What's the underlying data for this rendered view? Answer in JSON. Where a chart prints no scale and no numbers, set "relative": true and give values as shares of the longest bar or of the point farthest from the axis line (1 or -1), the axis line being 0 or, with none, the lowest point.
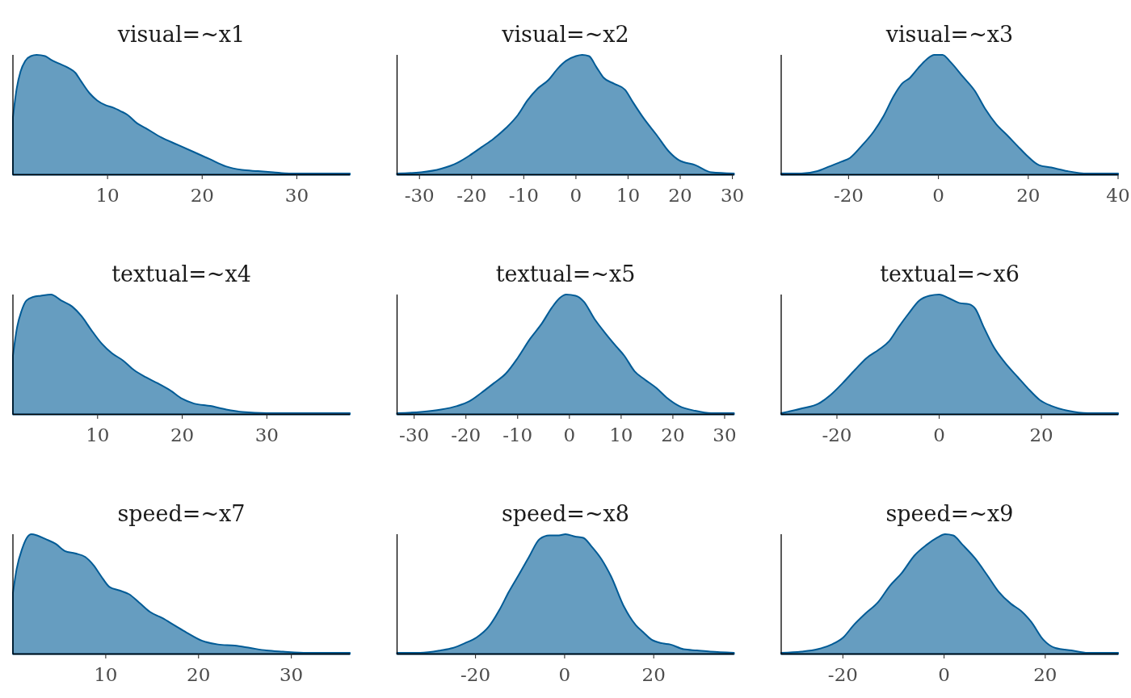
{
  "chart_data": [
    {
      "type": "area",
      "title": "visual=~x1",
      "relative": true,
      "color": "#005b96",
      "xlim": [
        0,
        35.6
      ],
      "xticks": [
        10,
        20,
        30
      ],
      "x": [
        0,
        0.4,
        0.8,
        1.3,
        1.9,
        2.5,
        3.4,
        4,
        4.8,
        5.9,
        6.6,
        7.2,
        8.1,
        8.9,
        9.8,
        10.6,
        11.4,
        12.1,
        13.1,
        14,
        15.7,
        17.4,
        19.1,
        20.8,
        22.5,
        24.2,
        25.9,
        27.5,
        29.2,
        30.9,
        33.5,
        35.6
      ],
      "values": [
        0.48,
        0.72,
        0.86,
        0.95,
        0.99,
        1,
        0.99,
        0.96,
        0.93,
        0.89,
        0.85,
        0.78,
        0.68,
        0.62,
        0.58,
        0.56,
        0.53,
        0.5,
        0.43,
        0.39,
        0.31,
        0.25,
        0.19,
        0.13,
        0.07,
        0.04,
        0.03,
        0.02,
        0.01,
        0.01,
        0.01,
        0.01
      ]
    },
    {
      "type": "area",
      "title": "visual=~x2",
      "relative": true,
      "color": "#005b96",
      "xlim": [
        -34.3,
        30.3
      ],
      "xticks": [
        -30,
        -20,
        -10,
        0,
        10,
        20,
        30
      ],
      "x": [
        -34.3,
        -29.7,
        -25.8,
        -22.7,
        -20.4,
        -18.1,
        -15.8,
        -13.4,
        -11.1,
        -9.3,
        -7.3,
        -5.3,
        -3.4,
        -1.9,
        0,
        1.2,
        2.5,
        3.9,
        5.3,
        7.3,
        9.4,
        11,
        13,
        15.5,
        17.9,
        19.8,
        22.9,
        26,
        30.3
      ],
      "values": [
        0.01,
        0.02,
        0.05,
        0.1,
        0.16,
        0.23,
        0.3,
        0.39,
        0.5,
        0.62,
        0.72,
        0.79,
        0.89,
        0.95,
        0.99,
        1,
        0.99,
        0.9,
        0.81,
        0.76,
        0.71,
        0.6,
        0.47,
        0.33,
        0.19,
        0.12,
        0.08,
        0.02,
        0.01
      ]
    },
    {
      "type": "area",
      "title": "visual=~x3",
      "relative": true,
      "color": "#005b96",
      "xlim": [
        -35,
        40
      ],
      "xticks": [
        -20,
        0,
        20,
        40
      ],
      "x": [
        -35,
        -30.5,
        -26.9,
        -24.2,
        -21.5,
        -19.7,
        -17.1,
        -14.4,
        -12.2,
        -9.9,
        -8.1,
        -6.3,
        -4.5,
        -2.7,
        -0.9,
        0.9,
        2.7,
        5.4,
        8.1,
        10.4,
        12.9,
        15.3,
        17.6,
        19.7,
        22.4,
        25.1,
        28.7,
        33.2,
        40
      ],
      "values": [
        0.01,
        0.01,
        0.03,
        0.07,
        0.11,
        0.14,
        0.24,
        0.36,
        0.49,
        0.66,
        0.76,
        0.81,
        0.89,
        0.96,
        1,
        1,
        0.94,
        0.82,
        0.7,
        0.55,
        0.42,
        0.33,
        0.24,
        0.16,
        0.08,
        0.06,
        0.03,
        0.01,
        0.01
      ]
    },
    {
      "type": "area",
      "title": "textual=~x4",
      "relative": true,
      "color": "#005b96",
      "xlim": [
        0,
        39.8
      ],
      "xticks": [
        10,
        20,
        30
      ],
      "x": [
        0,
        0.5,
        1,
        1.6,
        2.4,
        3.3,
        4.5,
        5.7,
        7,
        8.1,
        9.2,
        10.5,
        11.7,
        13,
        14.3,
        15.7,
        17.1,
        18.6,
        20,
        21.4,
        23.3,
        25.2,
        27.1,
        30,
        34.8,
        39.8
      ],
      "values": [
        0.49,
        0.73,
        0.86,
        0.95,
        0.98,
        0.99,
        1,
        0.95,
        0.9,
        0.82,
        0.71,
        0.59,
        0.51,
        0.45,
        0.37,
        0.31,
        0.26,
        0.2,
        0.13,
        0.09,
        0.07,
        0.04,
        0.02,
        0.01,
        0.01,
        0.01
      ]
    },
    {
      "type": "area",
      "title": "textual=~x5",
      "relative": true,
      "color": "#005b96",
      "xlim": [
        -33.3,
        31.8
      ],
      "xticks": [
        -30,
        -20,
        -10,
        0,
        10,
        20,
        30
      ],
      "x": [
        -33.3,
        -28.7,
        -24.8,
        -21.7,
        -19.3,
        -17,
        -14.6,
        -12.3,
        -10,
        -7.6,
        -5.3,
        -3.4,
        -1.9,
        -0.6,
        1.2,
        2.8,
        4.8,
        6.9,
        9,
        10.6,
        12.6,
        14.6,
        16.8,
        18.8,
        21.2,
        24.3,
        27.4,
        31.8
      ],
      "values": [
        0.01,
        0.02,
        0.04,
        0.07,
        0.11,
        0.18,
        0.26,
        0.34,
        0.47,
        0.63,
        0.76,
        0.89,
        0.97,
        1,
        0.99,
        0.94,
        0.8,
        0.68,
        0.57,
        0.49,
        0.36,
        0.29,
        0.22,
        0.14,
        0.07,
        0.03,
        0.01,
        0.01
      ]
    },
    {
      "type": "area",
      "title": "textual=~x6",
      "relative": true,
      "color": "#005b96",
      "xlim": [
        -30.9,
        35
      ],
      "xticks": [
        -20,
        0,
        20
      ],
      "x": [
        -30.9,
        -26.8,
        -23.6,
        -21.3,
        -18.9,
        -16.5,
        -14.2,
        -11.8,
        -9.8,
        -7.9,
        -6,
        -3.9,
        -1.9,
        0,
        1.9,
        3.9,
        5.8,
        7.1,
        8.7,
        10.7,
        12.9,
        15.4,
        17.3,
        19.7,
        22,
        25.2,
        29.1,
        35
      ],
      "values": [
        0.01,
        0.05,
        0.09,
        0.16,
        0.26,
        0.37,
        0.47,
        0.54,
        0.61,
        0.73,
        0.84,
        0.95,
        0.99,
        1,
        0.97,
        0.93,
        0.92,
        0.88,
        0.73,
        0.56,
        0.43,
        0.31,
        0.22,
        0.12,
        0.07,
        0.03,
        0.01,
        0.01
      ]
    },
    {
      "type": "area",
      "title": "speed=~x7",
      "relative": true,
      "color": "#005b96",
      "xlim": [
        0,
        36.3
      ],
      "xticks": [
        10,
        20,
        30
      ],
      "x": [
        0,
        0.4,
        1,
        1.5,
        2,
        2.6,
        3.5,
        4.6,
        5.6,
        6.7,
        7.8,
        8.7,
        9.5,
        10.4,
        11.5,
        12.5,
        13.6,
        14.8,
        16.1,
        17.4,
        18.7,
        20.4,
        22.1,
        23.9,
        25.6,
        27.3,
        29.1,
        31.7,
        36.3
      ],
      "values": [
        0.51,
        0.71,
        0.88,
        0.97,
        1,
        0.99,
        0.96,
        0.92,
        0.86,
        0.84,
        0.81,
        0.74,
        0.65,
        0.56,
        0.53,
        0.5,
        0.43,
        0.35,
        0.3,
        0.24,
        0.18,
        0.11,
        0.08,
        0.07,
        0.05,
        0.03,
        0.02,
        0.01,
        0.01
      ]
    },
    {
      "type": "area",
      "title": "speed=~x8",
      "relative": true,
      "color": "#005b96",
      "xlim": [
        -37.6,
        38
      ],
      "xticks": [
        -20,
        0,
        20
      ],
      "x": [
        -37.6,
        -32.4,
        -27.8,
        -25.1,
        -22.4,
        -19.7,
        -17,
        -14.6,
        -12.5,
        -10.3,
        -8,
        -5.6,
        -3.4,
        -1.3,
        0.2,
        2.4,
        4.2,
        6,
        8.3,
        10.4,
        13.4,
        16,
        17.7,
        19.5,
        21.9,
        23.7,
        26.7,
        29.7,
        32.7,
        38
      ],
      "values": [
        0.01,
        0.01,
        0.03,
        0.05,
        0.09,
        0.14,
        0.23,
        0.37,
        0.52,
        0.66,
        0.81,
        0.96,
        0.99,
        0.99,
        1,
        0.98,
        0.97,
        0.9,
        0.79,
        0.65,
        0.39,
        0.24,
        0.18,
        0.12,
        0.09,
        0.08,
        0.04,
        0.03,
        0.02,
        0.01
      ]
    },
    {
      "type": "area",
      "title": "speed=~x9",
      "relative": true,
      "color": "#005b96",
      "xlim": [
        -32.2,
        34.4
      ],
      "xticks": [
        -20,
        0,
        20
      ],
      "x": [
        -32.2,
        -28.2,
        -25,
        -22.2,
        -19.9,
        -17.9,
        -15.5,
        -13.1,
        -10.7,
        -8.3,
        -5.9,
        -3.5,
        -1.4,
        0.2,
        1.8,
        3.7,
        6.1,
        8.5,
        10.8,
        13.2,
        15.2,
        17.2,
        19.6,
        22,
        25.2,
        28.4,
        34.4
      ],
      "values": [
        0.01,
        0.02,
        0.04,
        0.08,
        0.14,
        0.24,
        0.34,
        0.43,
        0.57,
        0.68,
        0.82,
        0.91,
        0.97,
        1,
        0.99,
        0.91,
        0.8,
        0.66,
        0.52,
        0.42,
        0.36,
        0.27,
        0.12,
        0.05,
        0.03,
        0.01,
        0.01
      ]
    }
  ]
}
